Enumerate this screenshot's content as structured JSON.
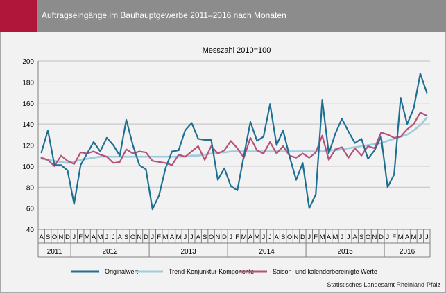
{
  "header": {
    "title": "Auftragseingänge im Bauhauptgewerbe 2011–2016 nach Monaten"
  },
  "source": "Statistisches Landesamt Rheinland-Pfalz",
  "colors": {
    "header_bg": "#8c8c8c",
    "accent": "#b0153a",
    "original": "#1f6f93",
    "trend": "#9dcbdf",
    "adjusted": "#b3527a"
  },
  "chart_data": {
    "type": "line",
    "title": "Messzahl 2010=100",
    "xlabel": "",
    "ylabel": "",
    "ylim": [
      40,
      200
    ],
    "yticks": [
      40,
      60,
      80,
      100,
      120,
      140,
      160,
      180,
      200
    ],
    "grid": true,
    "legend_position": "bottom",
    "x": [
      "2011-08",
      "2011-09",
      "2011-10",
      "2011-11",
      "2011-12",
      "2012-01",
      "2012-02",
      "2012-03",
      "2012-04",
      "2012-05",
      "2012-06",
      "2012-07",
      "2012-08",
      "2012-09",
      "2012-10",
      "2012-11",
      "2012-12",
      "2013-01",
      "2013-02",
      "2013-03",
      "2013-04",
      "2013-05",
      "2013-06",
      "2013-07",
      "2013-08",
      "2013-09",
      "2013-10",
      "2013-11",
      "2013-12",
      "2014-01",
      "2014-02",
      "2014-03",
      "2014-04",
      "2014-05",
      "2014-06",
      "2014-07",
      "2014-08",
      "2014-09",
      "2014-10",
      "2014-11",
      "2014-12",
      "2015-01",
      "2015-02",
      "2015-03",
      "2015-04",
      "2015-05",
      "2015-06",
      "2015-07",
      "2015-08",
      "2015-09",
      "2015-10",
      "2015-11",
      "2015-12",
      "2016-01",
      "2016-02",
      "2016-03",
      "2016-04",
      "2016-05",
      "2016-06",
      "2016-07"
    ],
    "month_labels": [
      "A",
      "S",
      "O",
      "N",
      "D",
      "J",
      "F",
      "M",
      "A",
      "M",
      "J",
      "J",
      "A",
      "S",
      "O",
      "N",
      "D",
      "J",
      "F",
      "M",
      "A",
      "M",
      "J",
      "J",
      "A",
      "S",
      "O",
      "N",
      "D",
      "J",
      "F",
      "M",
      "A",
      "M",
      "J",
      "J",
      "A",
      "S",
      "O",
      "N",
      "D",
      "J",
      "F",
      "M",
      "A",
      "M",
      "J",
      "J",
      "A",
      "S",
      "O",
      "N",
      "D",
      "J",
      "F",
      "M",
      "A",
      "M",
      "J",
      "J"
    ],
    "year_groups": [
      {
        "label": "2011",
        "start": 0,
        "end": 4
      },
      {
        "label": "2012",
        "start": 5,
        "end": 16
      },
      {
        "label": "2013",
        "start": 17,
        "end": 28
      },
      {
        "label": "2014",
        "start": 29,
        "end": 40
      },
      {
        "label": "2015",
        "start": 41,
        "end": 52
      },
      {
        "label": "2016",
        "start": 53,
        "end": 59
      }
    ],
    "series": [
      {
        "name": "Originalwert",
        "color": "#1f6f93",
        "values": [
          113,
          134,
          101,
          101,
          96,
          64,
          101,
          112,
          123,
          114,
          127,
          120,
          110,
          144,
          120,
          101,
          97,
          59,
          72,
          98,
          114,
          115,
          134,
          141,
          126,
          125,
          125,
          87,
          98,
          81,
          77,
          110,
          142,
          124,
          128,
          159,
          120,
          134,
          109,
          87,
          103,
          60,
          73,
          163,
          112,
          131,
          145,
          133,
          122,
          126,
          107,
          115,
          128,
          80,
          92,
          165,
          140,
          155,
          188,
          170
        ]
      },
      {
        "name": "Trend-Konjunktur-Komponente",
        "color": "#9dcbdf",
        "values": [
          107,
          106,
          105,
          104,
          103,
          104,
          106,
          107,
          108,
          109,
          109,
          109,
          109,
          109,
          109,
          109,
          109,
          109,
          109,
          109,
          109,
          109,
          109,
          110,
          110,
          111,
          112,
          113,
          113,
          114,
          114,
          114,
          114,
          114,
          114,
          114,
          114,
          114,
          114,
          114,
          114,
          114,
          114,
          114,
          115,
          115,
          116,
          117,
          118,
          119,
          120,
          121,
          122,
          124,
          126,
          128,
          130,
          134,
          139,
          146
        ]
      },
      {
        "name": "Saison- und kalenderbereinigte Werte",
        "color": "#b3527a",
        "values": [
          108,
          106,
          100,
          110,
          105,
          102,
          113,
          112,
          114,
          111,
          109,
          103,
          104,
          116,
          112,
          114,
          113,
          105,
          104,
          103,
          101,
          111,
          109,
          114,
          119,
          106,
          119,
          112,
          115,
          124,
          117,
          108,
          127,
          115,
          112,
          123,
          112,
          119,
          110,
          108,
          112,
          108,
          113,
          129,
          106,
          116,
          118,
          108,
          117,
          110,
          119,
          117,
          132,
          130,
          127,
          128,
          135,
          140,
          151,
          148
        ]
      }
    ]
  }
}
